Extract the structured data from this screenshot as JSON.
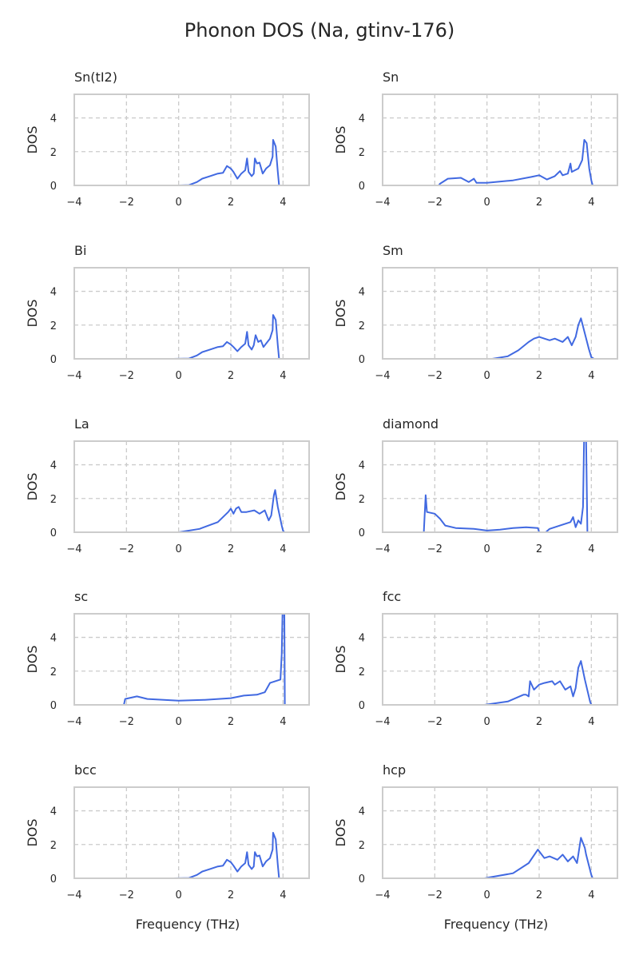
{
  "chart_data": {
    "title": "Phonon DOS (Na, gtinv-176)",
    "type": "line",
    "line_color": "#4169e1",
    "xlabel": "Frequency (THz)",
    "ylabel": "DOS",
    "xlim": [
      -4,
      5
    ],
    "ylim": [
      0,
      5.4
    ],
    "xticks": [
      -4,
      -2,
      0,
      2,
      4
    ],
    "yticks": [
      0,
      2,
      4
    ],
    "grid": true,
    "panels": [
      {
        "title": "Sn(tI2)",
        "points": [
          [
            0,
            0
          ],
          [
            0.4,
            0.02
          ],
          [
            0.7,
            0.2
          ],
          [
            0.9,
            0.4
          ],
          [
            1.2,
            0.55
          ],
          [
            1.5,
            0.7
          ],
          [
            1.7,
            0.75
          ],
          [
            1.85,
            1.15
          ],
          [
            2.0,
            1.0
          ],
          [
            2.1,
            0.8
          ],
          [
            2.25,
            0.4
          ],
          [
            2.4,
            0.7
          ],
          [
            2.55,
            0.9
          ],
          [
            2.62,
            1.6
          ],
          [
            2.68,
            0.8
          ],
          [
            2.8,
            0.55
          ],
          [
            2.88,
            0.7
          ],
          [
            2.92,
            1.6
          ],
          [
            3.0,
            1.3
          ],
          [
            3.1,
            1.35
          ],
          [
            3.22,
            0.7
          ],
          [
            3.35,
            1.0
          ],
          [
            3.5,
            1.2
          ],
          [
            3.6,
            1.7
          ],
          [
            3.62,
            2.7
          ],
          [
            3.72,
            2.3
          ],
          [
            3.8,
            0.8
          ],
          [
            3.85,
            0
          ]
        ]
      },
      {
        "title": "Sn",
        "points": [
          [
            -2.6,
            0
          ],
          [
            -1.85,
            0
          ],
          [
            -1.8,
            0.1
          ],
          [
            -1.5,
            0.4
          ],
          [
            -1.0,
            0.45
          ],
          [
            -0.7,
            0.2
          ],
          [
            -0.5,
            0.4
          ],
          [
            -0.4,
            0.15
          ],
          [
            0,
            0.15
          ],
          [
            1,
            0.3
          ],
          [
            1.7,
            0.5
          ],
          [
            2.0,
            0.6
          ],
          [
            2.3,
            0.35
          ],
          [
            2.6,
            0.55
          ],
          [
            2.8,
            0.85
          ],
          [
            2.9,
            0.6
          ],
          [
            3.1,
            0.7
          ],
          [
            3.2,
            1.3
          ],
          [
            3.25,
            0.8
          ],
          [
            3.5,
            1.0
          ],
          [
            3.65,
            1.5
          ],
          [
            3.73,
            2.7
          ],
          [
            3.82,
            2.5
          ],
          [
            3.92,
            1.0
          ],
          [
            4.0,
            0.3
          ],
          [
            4.05,
            0
          ]
        ]
      },
      {
        "title": "Bi",
        "points": [
          [
            -0.2,
            0
          ],
          [
            0.4,
            0.02
          ],
          [
            0.7,
            0.2
          ],
          [
            0.9,
            0.4
          ],
          [
            1.2,
            0.55
          ],
          [
            1.5,
            0.7
          ],
          [
            1.7,
            0.75
          ],
          [
            1.85,
            1.0
          ],
          [
            2.0,
            0.85
          ],
          [
            2.1,
            0.7
          ],
          [
            2.25,
            0.45
          ],
          [
            2.4,
            0.7
          ],
          [
            2.55,
            0.9
          ],
          [
            2.62,
            1.6
          ],
          [
            2.68,
            0.8
          ],
          [
            2.8,
            0.55
          ],
          [
            2.88,
            0.8
          ],
          [
            2.95,
            1.4
          ],
          [
            3.05,
            1.0
          ],
          [
            3.15,
            1.1
          ],
          [
            3.25,
            0.7
          ],
          [
            3.35,
            0.9
          ],
          [
            3.5,
            1.2
          ],
          [
            3.6,
            1.7
          ],
          [
            3.62,
            2.6
          ],
          [
            3.72,
            2.3
          ],
          [
            3.8,
            0.8
          ],
          [
            3.85,
            0
          ]
        ]
      },
      {
        "title": "Sm",
        "points": [
          [
            -0.2,
            0
          ],
          [
            0.2,
            0
          ],
          [
            0.8,
            0.15
          ],
          [
            1.2,
            0.5
          ],
          [
            1.6,
            1.0
          ],
          [
            1.8,
            1.2
          ],
          [
            2.0,
            1.3
          ],
          [
            2.4,
            1.1
          ],
          [
            2.6,
            1.2
          ],
          [
            2.9,
            1.0
          ],
          [
            3.1,
            1.3
          ],
          [
            3.25,
            0.8
          ],
          [
            3.4,
            1.3
          ],
          [
            3.5,
            2.0
          ],
          [
            3.6,
            2.4
          ],
          [
            3.75,
            1.5
          ],
          [
            3.9,
            0.6
          ],
          [
            4.0,
            0.1
          ],
          [
            4.1,
            0
          ],
          [
            4.3,
            0
          ]
        ]
      },
      {
        "title": "La",
        "points": [
          [
            -0.3,
            0
          ],
          [
            0,
            0
          ],
          [
            0.8,
            0.2
          ],
          [
            1.5,
            0.6
          ],
          [
            1.9,
            1.2
          ],
          [
            2.0,
            1.4
          ],
          [
            2.1,
            1.1
          ],
          [
            2.2,
            1.4
          ],
          [
            2.3,
            1.5
          ],
          [
            2.4,
            1.2
          ],
          [
            2.6,
            1.2
          ],
          [
            2.9,
            1.3
          ],
          [
            3.1,
            1.1
          ],
          [
            3.3,
            1.3
          ],
          [
            3.45,
            0.7
          ],
          [
            3.55,
            1.0
          ],
          [
            3.65,
            2.2
          ],
          [
            3.7,
            2.5
          ],
          [
            3.8,
            1.5
          ],
          [
            3.95,
            0.4
          ],
          [
            4.0,
            0.1
          ],
          [
            4.05,
            0
          ],
          [
            4.3,
            0
          ]
        ]
      },
      {
        "title": "diamond",
        "points": [
          [
            -3.05,
            0
          ],
          [
            -2.42,
            0
          ],
          [
            -2.35,
            2.2
          ],
          [
            -2.3,
            1.2
          ],
          [
            -2.0,
            1.1
          ],
          [
            -1.8,
            0.8
          ],
          [
            -1.6,
            0.4
          ],
          [
            -1.2,
            0.25
          ],
          [
            -0.5,
            0.2
          ],
          [
            0,
            0.1
          ],
          [
            0.5,
            0.15
          ],
          [
            1,
            0.25
          ],
          [
            1.5,
            0.3
          ],
          [
            1.95,
            0.25
          ],
          [
            2.0,
            0
          ],
          [
            2.25,
            0
          ],
          [
            2.4,
            0.2
          ],
          [
            2.8,
            0.4
          ],
          [
            3.2,
            0.6
          ],
          [
            3.3,
            0.9
          ],
          [
            3.4,
            0.3
          ],
          [
            3.5,
            0.7
          ],
          [
            3.6,
            0.5
          ],
          [
            3.68,
            1.5
          ],
          [
            3.72,
            5.4
          ],
          [
            3.8,
            5.4
          ],
          [
            3.85,
            0
          ],
          [
            4.5,
            0
          ]
        ]
      },
      {
        "title": "sc",
        "points": [
          [
            -2.75,
            0
          ],
          [
            -2.1,
            0
          ],
          [
            -2.05,
            0.35
          ],
          [
            -1.6,
            0.5
          ],
          [
            -1.2,
            0.35
          ],
          [
            0,
            0.25
          ],
          [
            1,
            0.3
          ],
          [
            2,
            0.4
          ],
          [
            2.5,
            0.55
          ],
          [
            3,
            0.6
          ],
          [
            3.3,
            0.75
          ],
          [
            3.5,
            1.3
          ],
          [
            3.9,
            1.5
          ],
          [
            3.95,
            3.0
          ],
          [
            3.98,
            5.4
          ],
          [
            4.05,
            5.4
          ],
          [
            4.07,
            0
          ],
          [
            4.6,
            0
          ]
        ]
      },
      {
        "title": "fcc",
        "points": [
          [
            -0.1,
            0
          ],
          [
            0.8,
            0.2
          ],
          [
            1.4,
            0.6
          ],
          [
            1.5,
            0.6
          ],
          [
            1.6,
            0.5
          ],
          [
            1.65,
            1.4
          ],
          [
            1.8,
            0.9
          ],
          [
            2.0,
            1.2
          ],
          [
            2.2,
            1.3
          ],
          [
            2.5,
            1.4
          ],
          [
            2.6,
            1.2
          ],
          [
            2.8,
            1.4
          ],
          [
            3.0,
            0.9
          ],
          [
            3.2,
            1.1
          ],
          [
            3.3,
            0.5
          ],
          [
            3.4,
            1.0
          ],
          [
            3.5,
            2.2
          ],
          [
            3.6,
            2.6
          ],
          [
            3.75,
            1.5
          ],
          [
            3.95,
            0.2
          ],
          [
            4.0,
            0
          ],
          [
            4.3,
            0
          ]
        ]
      },
      {
        "title": "bcc",
        "points": [
          [
            -0.2,
            0
          ],
          [
            0.4,
            0.02
          ],
          [
            0.7,
            0.2
          ],
          [
            0.9,
            0.4
          ],
          [
            1.2,
            0.55
          ],
          [
            1.5,
            0.7
          ],
          [
            1.7,
            0.75
          ],
          [
            1.85,
            1.1
          ],
          [
            2.0,
            0.95
          ],
          [
            2.1,
            0.75
          ],
          [
            2.25,
            0.4
          ],
          [
            2.4,
            0.7
          ],
          [
            2.55,
            0.9
          ],
          [
            2.62,
            1.55
          ],
          [
            2.68,
            0.8
          ],
          [
            2.8,
            0.55
          ],
          [
            2.88,
            0.7
          ],
          [
            2.92,
            1.55
          ],
          [
            3.0,
            1.3
          ],
          [
            3.1,
            1.35
          ],
          [
            3.22,
            0.7
          ],
          [
            3.35,
            1.0
          ],
          [
            3.5,
            1.2
          ],
          [
            3.6,
            1.7
          ],
          [
            3.62,
            2.7
          ],
          [
            3.72,
            2.3
          ],
          [
            3.8,
            0.8
          ],
          [
            3.85,
            0
          ]
        ]
      },
      {
        "title": "hcp",
        "points": [
          [
            -0.1,
            0
          ],
          [
            1.0,
            0.3
          ],
          [
            1.6,
            0.9
          ],
          [
            1.95,
            1.7
          ],
          [
            2.2,
            1.2
          ],
          [
            2.4,
            1.3
          ],
          [
            2.7,
            1.1
          ],
          [
            2.9,
            1.4
          ],
          [
            3.1,
            1.0
          ],
          [
            3.3,
            1.3
          ],
          [
            3.45,
            0.9
          ],
          [
            3.6,
            2.4
          ],
          [
            3.75,
            1.8
          ],
          [
            3.8,
            1.4
          ],
          [
            4.0,
            0.2
          ],
          [
            4.05,
            0
          ],
          [
            4.3,
            0
          ]
        ]
      }
    ]
  }
}
